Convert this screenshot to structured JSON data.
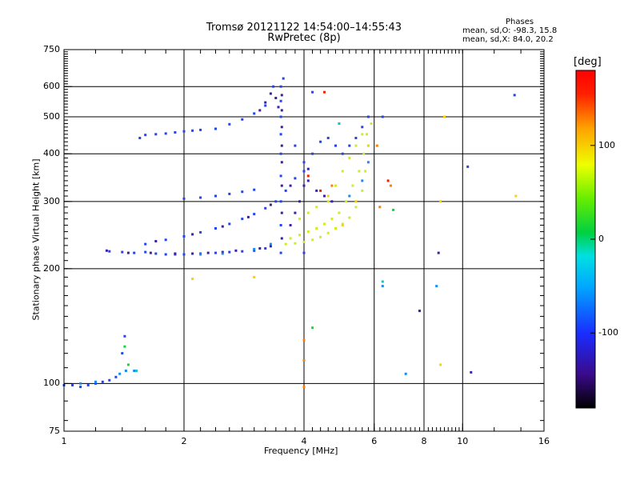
{
  "title": "Tromsø 20121122 14:54:00–14:55:43",
  "subtitle": "RwPretec (8p)",
  "stats": {
    "heading": "Phases",
    "line_o": "mean, sd,O: -98.3, 15.8",
    "line_x": "mean, sd,X:  84.0, 20.2"
  },
  "chart_data": {
    "type": "scatter",
    "xlabel": "Frequency [MHz]",
    "ylabel": "Stationary phase Virtual Height [km]",
    "xscale": "log",
    "yscale": "log",
    "xlim": [
      1,
      16
    ],
    "ylim": [
      75,
      750
    ],
    "grid": true,
    "xticks": [
      1,
      2,
      4,
      6,
      8,
      10,
      16
    ],
    "xtick_labels": [
      "1",
      "2",
      "4",
      "6",
      "8",
      "10",
      "16"
    ],
    "yticks": [
      75,
      100,
      200,
      300,
      400,
      500,
      600,
      750
    ],
    "ytick_labels": [
      "75",
      "100",
      "200",
      "300",
      "400",
      "500",
      "600",
      "750"
    ],
    "colorbar": {
      "label": "[deg]",
      "range": [
        -180,
        180
      ],
      "ticks": [
        100,
        0,
        -100
      ],
      "tick_labels": [
        "100",
        "0",
        "-100"
      ]
    },
    "series": [
      {
        "color": "#2244ee",
        "phase": -100,
        "points": [
          [
            1.0,
            99
          ],
          [
            1.05,
            99
          ],
          [
            1.1,
            98
          ],
          [
            1.15,
            99
          ],
          [
            1.2,
            100
          ],
          [
            1.25,
            101
          ],
          [
            1.3,
            102
          ],
          [
            1.35,
            104
          ],
          [
            1.4,
            120
          ],
          [
            1.42,
            133
          ],
          [
            1.3,
            222
          ],
          [
            1.4,
            221
          ],
          [
            1.5,
            220
          ],
          [
            1.6,
            221
          ],
          [
            1.7,
            219
          ],
          [
            1.8,
            218
          ],
          [
            1.9,
            218
          ],
          [
            2.0,
            218
          ],
          [
            2.2,
            219
          ],
          [
            2.4,
            220
          ],
          [
            2.6,
            221
          ],
          [
            2.8,
            222
          ],
          [
            3.0,
            223
          ],
          [
            3.2,
            226
          ],
          [
            1.6,
            232
          ],
          [
            1.8,
            238
          ],
          [
            2.0,
            243
          ],
          [
            2.2,
            249
          ],
          [
            2.4,
            255
          ],
          [
            2.6,
            262
          ],
          [
            2.8,
            270
          ],
          [
            3.0,
            278
          ],
          [
            3.2,
            288
          ],
          [
            3.4,
            300
          ],
          [
            3.6,
            320
          ],
          [
            3.8,
            345
          ],
          [
            4.0,
            360
          ],
          [
            2.0,
            305
          ],
          [
            2.2,
            307
          ],
          [
            2.4,
            310
          ],
          [
            2.6,
            314
          ],
          [
            2.8,
            318
          ],
          [
            3.0,
            322
          ],
          [
            1.55,
            440
          ],
          [
            1.6,
            448
          ],
          [
            1.7,
            450
          ],
          [
            1.8,
            452
          ],
          [
            1.9,
            455
          ],
          [
            2.0,
            458
          ],
          [
            2.1,
            460
          ],
          [
            2.2,
            462
          ],
          [
            2.4,
            465
          ],
          [
            2.6,
            478
          ],
          [
            2.8,
            492
          ],
          [
            3.0,
            510
          ],
          [
            3.2,
            535
          ],
          [
            3.35,
            600
          ],
          [
            3.5,
            220
          ],
          [
            3.5,
            260
          ],
          [
            3.5,
            300
          ],
          [
            3.5,
            350
          ],
          [
            3.5,
            400
          ],
          [
            3.5,
            450
          ],
          [
            3.5,
            500
          ],
          [
            3.5,
            550
          ],
          [
            3.5,
            600
          ],
          [
            3.55,
            630
          ],
          [
            3.8,
            420
          ],
          [
            4.0,
            380
          ],
          [
            4.2,
            400
          ],
          [
            4.4,
            430
          ],
          [
            4.6,
            440
          ],
          [
            4.8,
            420
          ],
          [
            5.0,
            400
          ],
          [
            5.2,
            420
          ],
          [
            5.4,
            440
          ],
          [
            5.6,
            470
          ],
          [
            5.8,
            500
          ],
          [
            4.0,
            220
          ],
          [
            6.3,
            500
          ],
          [
            13.5,
            570
          ],
          [
            4.2,
            580
          ],
          [
            10.3,
            370
          ]
        ]
      },
      {
        "color": "#3a1eb0",
        "phase": -120,
        "points": [
          [
            1.28,
            223
          ],
          [
            1.45,
            220
          ],
          [
            1.65,
            220
          ],
          [
            1.9,
            219
          ],
          [
            2.1,
            219
          ],
          [
            2.3,
            220
          ],
          [
            2.5,
            221
          ],
          [
            2.7,
            223
          ],
          [
            3.1,
            226
          ],
          [
            3.3,
            229
          ],
          [
            1.7,
            236
          ],
          [
            2.1,
            246
          ],
          [
            2.5,
            258
          ],
          [
            2.9,
            273
          ],
          [
            3.3,
            294
          ],
          [
            3.7,
            330
          ],
          [
            4.1,
            365
          ],
          [
            3.1,
            520
          ],
          [
            3.2,
            545
          ],
          [
            3.3,
            575
          ],
          [
            3.4,
            560
          ],
          [
            3.45,
            530
          ],
          [
            3.52,
            240
          ],
          [
            3.52,
            280
          ],
          [
            3.52,
            330
          ],
          [
            3.52,
            380
          ],
          [
            3.52,
            420
          ],
          [
            3.52,
            470
          ],
          [
            3.52,
            520
          ],
          [
            3.52,
            570
          ],
          [
            3.7,
            260
          ],
          [
            3.8,
            280
          ],
          [
            3.9,
            300
          ],
          [
            4.0,
            330
          ],
          [
            4.1,
            340
          ],
          [
            4.3,
            320
          ],
          [
            4.5,
            310
          ],
          [
            4.7,
            300
          ],
          [
            8.7,
            220
          ],
          [
            10.5,
            107
          ],
          [
            7.8,
            155
          ]
        ]
      },
      {
        "color": "#1a8cf0",
        "phase": -80,
        "points": [
          [
            1.1,
            100
          ],
          [
            1.2,
            101
          ],
          [
            1.38,
            106
          ],
          [
            1.43,
            108
          ],
          [
            1.5,
            108
          ],
          [
            2.2,
            218
          ],
          [
            2.5,
            219
          ],
          [
            3.0,
            225
          ],
          [
            3.3,
            232
          ],
          [
            5.2,
            310
          ],
          [
            5.6,
            340
          ],
          [
            5.8,
            380
          ],
          [
            6.3,
            180
          ],
          [
            7.2,
            106
          ],
          [
            8.6,
            180
          ]
        ]
      },
      {
        "color": "#ccee22",
        "phase": 100,
        "points": [
          [
            3.6,
            232
          ],
          [
            3.8,
            233
          ],
          [
            4.0,
            235
          ],
          [
            4.2,
            238
          ],
          [
            4.4,
            242
          ],
          [
            4.6,
            248
          ],
          [
            4.8,
            255
          ],
          [
            5.0,
            262
          ],
          [
            5.2,
            272
          ],
          [
            5.4,
            290
          ],
          [
            5.6,
            320
          ],
          [
            5.7,
            360
          ],
          [
            5.8,
            420
          ],
          [
            5.9,
            480
          ],
          [
            3.7,
            240
          ],
          [
            3.9,
            245
          ],
          [
            4.1,
            250
          ],
          [
            4.3,
            255
          ],
          [
            4.5,
            262
          ],
          [
            4.7,
            270
          ],
          [
            4.9,
            280
          ],
          [
            5.1,
            300
          ],
          [
            5.3,
            330
          ],
          [
            5.5,
            360
          ],
          [
            5.65,
            400
          ],
          [
            5.75,
            450
          ],
          [
            4.6,
            300
          ],
          [
            4.8,
            330
          ],
          [
            5.0,
            360
          ],
          [
            5.2,
            390
          ],
          [
            5.4,
            420
          ],
          [
            5.6,
            450
          ],
          [
            3.9,
            270
          ],
          [
            4.1,
            280
          ],
          [
            4.3,
            290
          ]
        ]
      },
      {
        "color": "#ffd000",
        "phase": 80,
        "points": [
          [
            3.0,
            190
          ],
          [
            2.1,
            188
          ],
          [
            5.0,
            260
          ],
          [
            5.4,
            300
          ],
          [
            8.8,
            300
          ],
          [
            8.8,
            112
          ],
          [
            9.0,
            500
          ],
          [
            5.8,
            420
          ],
          [
            4.6,
            310
          ],
          [
            13.6,
            310
          ]
        ]
      },
      {
        "color": "#ff8000",
        "phase": 140,
        "points": [
          [
            4.0,
            130
          ],
          [
            4.0,
            115
          ],
          [
            4.0,
            98
          ],
          [
            4.7,
            330
          ],
          [
            6.1,
            420
          ],
          [
            6.6,
            330
          ],
          [
            6.2,
            290
          ]
        ]
      },
      {
        "color": "#ee2200",
        "phase": 170,
        "points": [
          [
            4.1,
            350
          ],
          [
            4.4,
            320
          ],
          [
            6.5,
            340
          ],
          [
            4.5,
            580
          ]
        ]
      },
      {
        "color": "#22cc44",
        "phase": 30,
        "points": [
          [
            1.42,
            125
          ],
          [
            1.45,
            112
          ],
          [
            6.7,
            285
          ],
          [
            4.2,
            140
          ]
        ]
      },
      {
        "color": "#00cccc",
        "phase": -40,
        "points": [
          [
            1.52,
            108
          ],
          [
            6.3,
            185
          ],
          [
            4.9,
            480
          ]
        ]
      }
    ]
  }
}
